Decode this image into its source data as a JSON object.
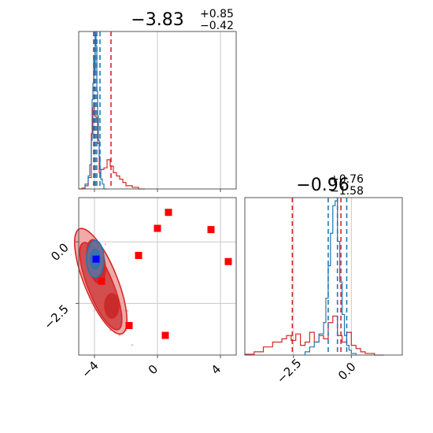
{
  "chart_data": {
    "type": "corner",
    "parameters": [
      {
        "title_main": "−3.83",
        "title_sup": "+0.85",
        "title_sub": "−0.42",
        "range": [
          -5,
          5
        ],
        "ticks": [
          -4,
          0,
          4
        ],
        "tick_labels": [
          "−4",
          "0",
          "4"
        ],
        "quantiles_red": [
          -4.05,
          -3.95,
          -2.95
        ],
        "quantiles_blue": [
          -4.0,
          -3.85,
          -3.65
        ],
        "hist_red": {
          "edges": [
            -5.0,
            -4.8,
            -4.6,
            -4.4,
            -4.2,
            -4.1,
            -4.0,
            -3.9,
            -3.8,
            -3.7,
            -3.6,
            -3.4,
            -3.2,
            -3.0,
            -2.8,
            -2.6,
            -2.4,
            -2.2,
            -2.0,
            -1.6,
            -1.2,
            -0.8
          ],
          "heights": [
            0.0,
            0.005,
            0.02,
            0.07,
            0.34,
            0.5,
            0.45,
            0.44,
            0.28,
            0.1,
            0.12,
            0.13,
            0.18,
            0.14,
            0.1,
            0.08,
            0.06,
            0.04,
            0.02,
            0.01,
            0.0
          ]
        },
        "hist_blue": {
          "edges": [
            -4.6,
            -4.4,
            -4.3,
            -4.2,
            -4.15,
            -4.1,
            -4.05,
            -4.0,
            -3.95,
            -3.9,
            -3.85,
            -3.8,
            -3.75,
            -3.7,
            -3.65,
            -3.6,
            -3.5,
            -3.4,
            -3.2
          ],
          "heights": [
            0.03,
            0.08,
            0.15,
            0.3,
            0.55,
            0.65,
            0.8,
            0.72,
            0.95,
            0.88,
            0.6,
            0.45,
            0.3,
            0.2,
            0.12,
            0.06,
            0.03,
            0.0
          ]
        }
      },
      {
        "title_main": "−0.96",
        "title_sup": "+0.76",
        "title_sub": "−1.58",
        "range": [
          -4.6,
          2.2
        ],
        "ticks": [
          -2.5,
          0.0
        ],
        "tick_labels": [
          "−2.5",
          "0.0"
        ],
        "ylim2d": [
          -4.6,
          1.8
        ],
        "ticks2d": [
          0.0,
          -2.5
        ],
        "tick_labels2d": [
          "0.0",
          "−2.5"
        ],
        "quantiles_red": [
          -2.55,
          -0.45
        ],
        "quantiles_blue": [
          -1.0,
          -0.6,
          -0.2
        ],
        "hist_red": {
          "edges": [
            -4.6,
            -4.2,
            -3.8,
            -3.4,
            -3.0,
            -2.8,
            -2.6,
            -2.4,
            -2.2,
            -2.0,
            -1.8,
            -1.6,
            -1.4,
            -1.2,
            -1.0,
            -0.8,
            -0.6,
            -0.4,
            -0.2,
            0.0,
            0.2,
            0.4,
            0.6,
            1.0,
            1.4
          ],
          "heights": [
            0.005,
            0.02,
            0.05,
            0.08,
            0.1,
            0.12,
            0.09,
            0.13,
            0.06,
            0.08,
            0.14,
            0.08,
            0.12,
            0.1,
            0.2,
            0.24,
            0.12,
            0.08,
            0.14,
            0.06,
            0.04,
            0.02,
            0.01,
            0.0
          ]
        },
        "hist_blue": {
          "edges": [
            -2.0,
            -1.8,
            -1.6,
            -1.4,
            -1.2,
            -1.1,
            -1.0,
            -0.9,
            -0.8,
            -0.7,
            -0.6,
            -0.5,
            -0.4,
            -0.3,
            -0.2,
            -0.1,
            0.0,
            0.2
          ],
          "heights": [
            0.02,
            0.05,
            0.08,
            0.13,
            0.2,
            0.35,
            0.55,
            0.75,
            0.92,
            0.95,
            0.7,
            0.45,
            0.25,
            0.12,
            0.06,
            0.03,
            0.01
          ]
        }
      }
    ],
    "points": [
      {
        "x": 0.7,
        "y": 1.2
      },
      {
        "x": 0.0,
        "y": 0.55
      },
      {
        "x": 3.4,
        "y": 0.5
      },
      {
        "x": -1.2,
        "y": -0.55
      },
      {
        "x": 4.5,
        "y": -0.8
      },
      {
        "x": -3.55,
        "y": -1.6
      },
      {
        "x": -1.8,
        "y": -3.4
      },
      {
        "x": 0.5,
        "y": -3.8
      }
    ],
    "truth": {
      "x": -3.9,
      "y": -0.7
    },
    "contours_red": [
      {
        "cx": -3.6,
        "cy": -1.6,
        "rx": 1.05,
        "ry": 2.3,
        "angle": -22
      },
      {
        "cx": -3.6,
        "cy": -1.8,
        "rx": 0.8,
        "ry": 1.9,
        "angle": -22
      },
      {
        "cx": -3.9,
        "cy": -0.8,
        "rx": 0.55,
        "ry": 0.9,
        "angle": -10
      },
      {
        "cx": -2.9,
        "cy": -2.6,
        "rx": 0.45,
        "ry": 0.5,
        "angle": 0
      }
    ],
    "contours_blue": [
      {
        "cx": -3.95,
        "cy": -0.7,
        "rx": 0.55,
        "ry": 0.75,
        "angle": 0
      },
      {
        "cx": -3.95,
        "cy": -0.7,
        "rx": 0.3,
        "ry": 0.4,
        "angle": 0
      }
    ],
    "colors": {
      "red": "#d62728",
      "red_fill": "#ef9a9a",
      "red_fill_dark": "#c62828",
      "blue": "#1f77b4",
      "marker_red": "#ff0000",
      "marker_blue": "#0000ff",
      "grid": "#c8c8c8",
      "axis": "#555555"
    }
  }
}
